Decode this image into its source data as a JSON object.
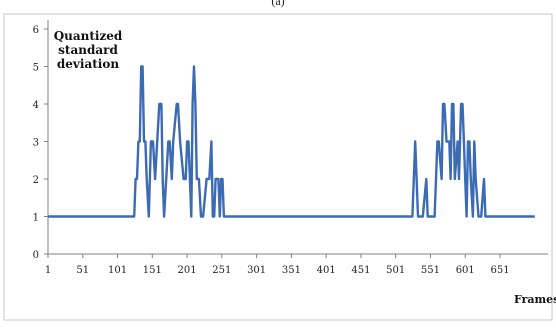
{
  "figure": {
    "caption": "(a)"
  },
  "chart_data": {
    "type": "line",
    "ylabel": "Quantized standard deviation",
    "ylabel_lines": [
      "Quantized",
      "standard",
      "deviation"
    ],
    "xlabel": "Frames",
    "ylim": [
      0,
      6
    ],
    "xlim": [
      1,
      720
    ],
    "yticks": [
      0,
      1,
      2,
      3,
      4,
      5,
      6
    ],
    "xticks": [
      1,
      51,
      101,
      151,
      201,
      251,
      301,
      351,
      401,
      451,
      501,
      551,
      601,
      651
    ],
    "grid": false,
    "line_color": "#3b6bb5",
    "series": [
      {
        "x": [
          1,
          125,
          127,
          129,
          131,
          133,
          135,
          137,
          139,
          141,
          143,
          146,
          149,
          152,
          155,
          158,
          161,
          164,
          166,
          168,
          171,
          174,
          176,
          179,
          181,
          186,
          188,
          191,
          196,
          199,
          201,
          203,
          205,
          207,
          209,
          211,
          213,
          215,
          218,
          221,
          224,
          229,
          231,
          233,
          236,
          238,
          240,
          242,
          246,
          248,
          250,
          252,
          254,
          256,
          258,
          259,
          262,
          265,
          268,
          272,
          275,
          278,
          510,
          525,
          527,
          529,
          531,
          533,
          536,
          540,
          545,
          547,
          549,
          555,
          557,
          561,
          563,
          567,
          569,
          571,
          574,
          578,
          580,
          582,
          584,
          586,
          590,
          592,
          595,
          597,
          599,
          601,
          603,
          605,
          607,
          609,
          612,
          614,
          616,
          620,
          622,
          624,
          628,
          630,
          634,
          636,
          638,
          641,
          643,
          646,
          649,
          652,
          655,
          658,
          661,
          664,
          670,
          673,
          676,
          680,
          684,
          688,
          694,
          701
        ],
        "y": [
          1,
          1,
          2,
          2,
          3,
          3,
          5,
          5,
          3,
          3,
          2,
          1,
          3,
          3,
          2,
          3,
          4,
          4,
          2,
          1,
          2,
          3,
          3,
          2,
          3,
          4,
          4,
          3,
          2,
          2,
          3,
          3,
          2,
          1,
          4,
          5,
          4,
          2,
          2,
          1,
          1,
          2,
          2,
          2,
          3,
          1,
          1,
          2,
          2,
          1,
          2,
          2,
          1,
          1,
          1,
          1,
          1,
          1,
          1,
          1,
          1,
          1,
          1,
          1,
          2,
          3,
          2,
          1,
          1,
          1,
          2,
          1,
          1,
          1,
          1,
          3,
          3,
          2,
          4,
          4,
          3,
          3,
          2,
          4,
          4,
          2,
          3,
          2,
          4,
          4,
          3,
          2,
          1,
          3,
          3,
          2,
          1,
          3,
          2,
          1,
          1,
          1,
          2,
          1,
          1,
          1,
          1,
          1,
          1,
          1,
          1,
          1,
          1,
          1,
          1,
          1,
          1,
          1,
          1,
          1,
          1,
          1,
          1,
          1
        ]
      }
    ]
  }
}
